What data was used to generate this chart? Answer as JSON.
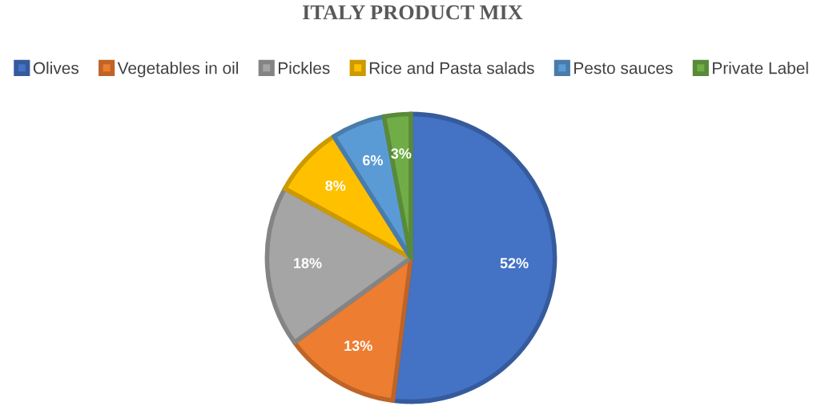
{
  "chart_data": {
    "type": "pie",
    "title": "ITALY PRODUCT MIX",
    "categories": [
      "Olives",
      "Vegetables in oil",
      "Pickles",
      "Rice and Pasta salads",
      "Pesto sauces",
      "Private Label"
    ],
    "values": [
      52,
      13,
      18,
      8,
      6,
      3
    ],
    "colors": [
      "#4472c4",
      "#ed7d31",
      "#a5a5a5",
      "#ffc000",
      "#5b9bd5",
      "#70ad47"
    ],
    "value_labels": [
      "52%",
      "13%",
      "18%",
      "8%",
      "6%",
      "3%"
    ],
    "legend": "top"
  }
}
